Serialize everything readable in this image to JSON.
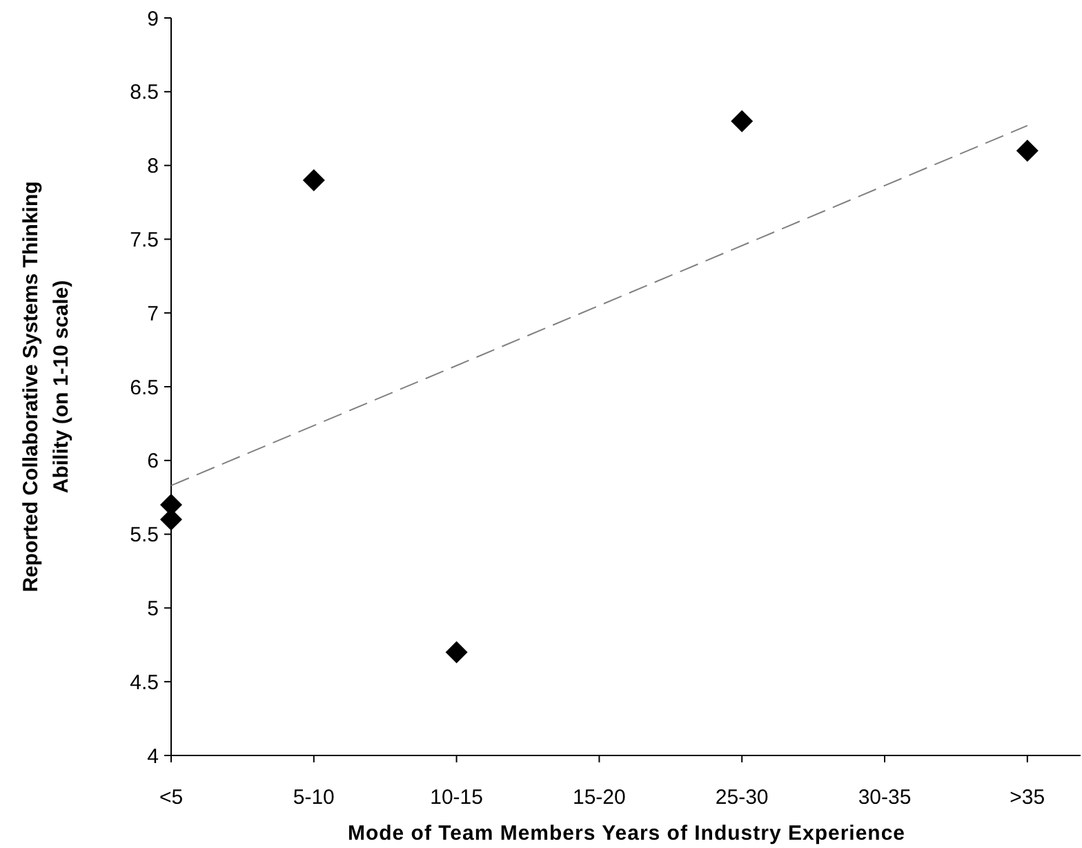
{
  "chart_data": {
    "type": "scatter",
    "xlabel": "Mode of Team Members Years of Industry Experience",
    "ylabel": "Reported Collaborative Systems Thinking Ability (on 1-10 scale)",
    "categories": [
      "<5",
      "5-10",
      "10-15",
      "15-20",
      "25-30",
      "30-35",
      ">35"
    ],
    "ylim": [
      4,
      9
    ],
    "yticks": [
      4,
      4.5,
      5,
      5.5,
      6,
      6.5,
      7,
      7.5,
      8,
      8.5,
      9
    ],
    "series": [
      {
        "x": [
          "<5",
          "<5",
          "5-10",
          "10-15",
          "25-30",
          ">35"
        ],
        "values": [
          5.7,
          5.6,
          7.9,
          4.7,
          8.3,
          8.1
        ],
        "color": "#000000",
        "marker": "diamond"
      },
      {
        "type": "line",
        "x": [
          "<5",
          ">35"
        ],
        "values": [
          5.83,
          8.27
        ],
        "color": "#808080",
        "line_style": "dashed",
        "marker": "none"
      }
    ]
  }
}
